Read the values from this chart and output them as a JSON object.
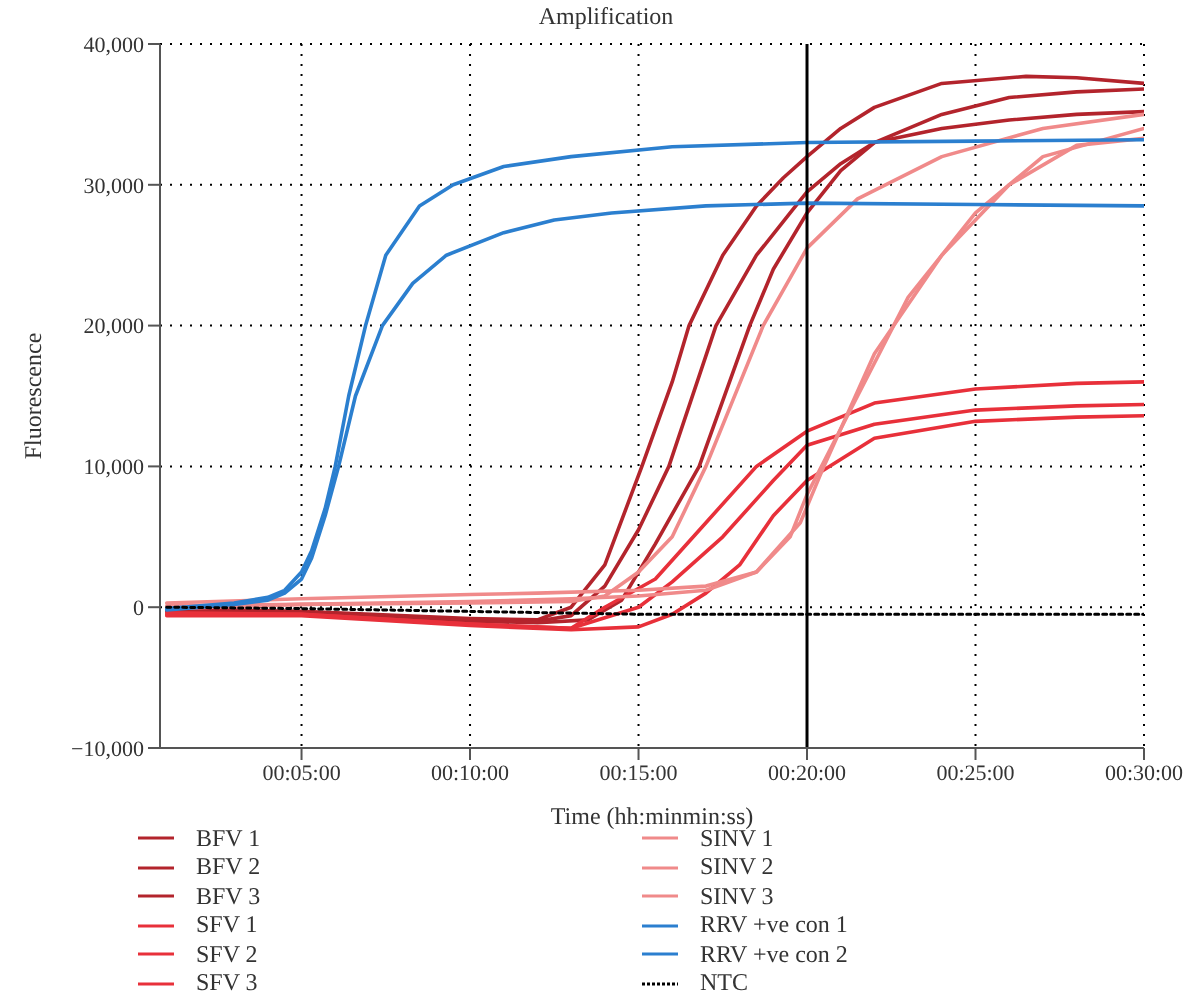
{
  "chart_data": {
    "type": "line",
    "title": "Amplification",
    "xlabel": "Time (hh:minmin:ss)",
    "ylabel": "Fluorescence",
    "xlim": [
      0.8,
      30
    ],
    "xticks": [
      {
        "value": 5,
        "label": "00:05:00"
      },
      {
        "value": 10,
        "label": "00:10:00"
      },
      {
        "value": 15,
        "label": "00:15:00"
      },
      {
        "value": 20,
        "label": "00:20:00"
      },
      {
        "value": 25,
        "label": "00:25:00"
      },
      {
        "value": 30,
        "label": "00:30:00"
      }
    ],
    "ylim": [
      -10000,
      40000
    ],
    "yticks": [
      {
        "value": -10000,
        "label": "−10,000"
      },
      {
        "value": 0,
        "label": "0"
      },
      {
        "value": 10000,
        "label": "10,000"
      },
      {
        "value": 20000,
        "label": "20,000"
      },
      {
        "value": 30000,
        "label": "30,000"
      },
      {
        "value": 40000,
        "label": "40,000"
      }
    ],
    "grid": true,
    "legend": "bottom",
    "marker": "none",
    "line_style": "solid",
    "ref_lines": [
      {
        "axis": "x",
        "value": 20,
        "label": null,
        "color": "#000000"
      }
    ],
    "series": [
      {
        "name": "BFV 1",
        "color": "#b3242c",
        "x": [
          1,
          5,
          10,
          12,
          13,
          14,
          15.1,
          16,
          16.5,
          17.5,
          18.5,
          19.3,
          20,
          21,
          22,
          24,
          26.5,
          28,
          30
        ],
        "values": [
          -100,
          -300,
          -800,
          -900,
          0,
          3000,
          10000,
          16000,
          20000,
          25000,
          28500,
          30500,
          32000,
          34000,
          35500,
          37200,
          37700,
          37600,
          37200
        ]
      },
      {
        "name": "BFV 2",
        "color": "#b3242c",
        "x": [
          1,
          5,
          10,
          12,
          13,
          14,
          15,
          15.9,
          17.3,
          18.5,
          19.5,
          20,
          21,
          22,
          24,
          26,
          28,
          30
        ],
        "values": [
          -200,
          -400,
          -1000,
          -1000,
          -600,
          1500,
          5500,
          10000,
          20000,
          25000,
          28000,
          29500,
          31500,
          33000,
          35000,
          36200,
          36600,
          36800
        ]
      },
      {
        "name": "BFV 3",
        "color": "#b3242c",
        "x": [
          1,
          5,
          10,
          12,
          13.5,
          14.5,
          15.5,
          16.8,
          18.3,
          19,
          20,
          21,
          22,
          24,
          26,
          28,
          30
        ],
        "values": [
          -300,
          -400,
          -1000,
          -1100,
          -900,
          500,
          4500,
          10000,
          20000,
          24000,
          28000,
          31000,
          33000,
          34000,
          34600,
          35000,
          35200
        ]
      },
      {
        "name": "SFV 1",
        "color": "#e8303a",
        "x": [
          1,
          5,
          10,
          13,
          14,
          15.5,
          17,
          18.5,
          20,
          22,
          25,
          28,
          30
        ],
        "values": [
          -400,
          -500,
          -1200,
          -1500,
          0,
          2000,
          6000,
          10000,
          12500,
          14500,
          15500,
          15900,
          16000
        ]
      },
      {
        "name": "SFV 2",
        "color": "#e8303a",
        "x": [
          1,
          5,
          10,
          13,
          15,
          16,
          17.5,
          19,
          20,
          22,
          25,
          28,
          30
        ],
        "values": [
          -500,
          -500,
          -1200,
          -1500,
          0,
          1800,
          5000,
          9000,
          11500,
          13000,
          14000,
          14300,
          14400
        ]
      },
      {
        "name": "SFV 3",
        "color": "#e8303a",
        "x": [
          1,
          5,
          10,
          13,
          15,
          16,
          17,
          18,
          19,
          20,
          22,
          25,
          28,
          30
        ],
        "values": [
          -600,
          -600,
          -1300,
          -1600,
          -1400,
          -500,
          1000,
          3000,
          6500,
          9000,
          12000,
          13200,
          13500,
          13600
        ]
      },
      {
        "name": "SINV 1",
        "color": "#f08a8a",
        "x": [
          1,
          5,
          10,
          13,
          14,
          15,
          16,
          17,
          18.7,
          20,
          21.5,
          24,
          27,
          30
        ],
        "values": [
          100,
          200,
          300,
          400,
          800,
          2500,
          5000,
          10000,
          20000,
          25500,
          29000,
          32000,
          34000,
          35000
        ]
      },
      {
        "name": "SINV 2",
        "color": "#f08a8a",
        "x": [
          1,
          5,
          10,
          12,
          15,
          17,
          18.5,
          19.5,
          20,
          21.5,
          23,
          25,
          27,
          30
        ],
        "values": [
          300,
          600,
          900,
          1000,
          1200,
          1500,
          2500,
          5000,
          8000,
          15000,
          22000,
          28000,
          32000,
          34000
        ]
      },
      {
        "name": "SINV 3",
        "color": "#f08a8a",
        "x": [
          1,
          5,
          10,
          13,
          15,
          17,
          18.5,
          19.8,
          20.5,
          22,
          24,
          26,
          28,
          30
        ],
        "values": [
          -100,
          200,
          400,
          600,
          800,
          1200,
          2500,
          6000,
          10000,
          18000,
          25000,
          30000,
          32800,
          33300
        ]
      },
      {
        "name": "RRV +ve con 1",
        "color": "#2b7fcf",
        "x": [
          1,
          2,
          3,
          4,
          4.5,
          5,
          5.3,
          5.7,
          6,
          6.4,
          6.9,
          7.5,
          8.5,
          9.5,
          11,
          13,
          16,
          20,
          25,
          30
        ],
        "values": [
          -100,
          100,
          300,
          700,
          1200,
          2500,
          4000,
          7000,
          10000,
          15000,
          20000,
          25000,
          28500,
          30000,
          31300,
          32000,
          32700,
          33000,
          33100,
          33200
        ]
      },
      {
        "name": "RRV +ve con 2",
        "color": "#2b7fcf",
        "x": [
          1,
          2,
          3,
          4,
          4.5,
          5,
          5.3,
          5.7,
          6.1,
          6.6,
          7.4,
          8.3,
          9.3,
          11,
          12.5,
          14.2,
          17,
          20,
          25,
          30
        ],
        "values": [
          -200,
          0,
          200,
          500,
          1000,
          2000,
          3500,
          6500,
          10000,
          15000,
          20000,
          23000,
          25000,
          26600,
          27500,
          28000,
          28500,
          28700,
          28600,
          28500
        ]
      },
      {
        "name": "NTC",
        "color": "#000000",
        "line_style": "dotted",
        "x": [
          1,
          5,
          10,
          15,
          20,
          25,
          30
        ],
        "values": [
          0,
          -100,
          -300,
          -500,
          -500,
          -500,
          -500
        ]
      }
    ]
  }
}
